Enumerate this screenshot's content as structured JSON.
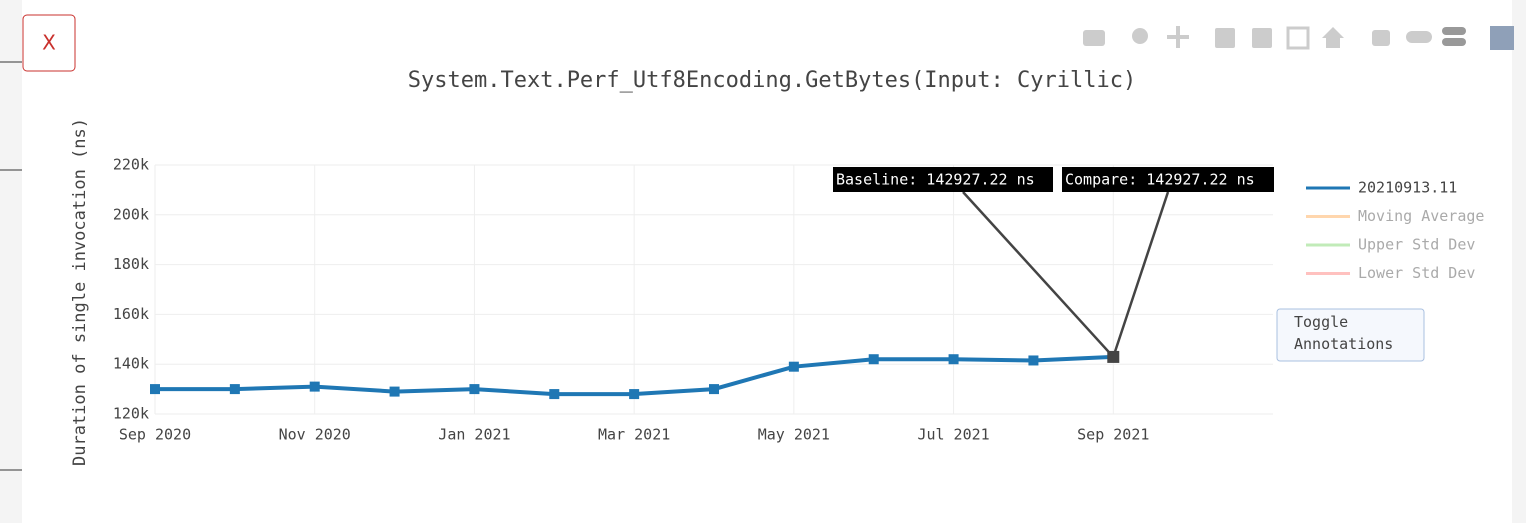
{
  "close_button": "X",
  "toggle_button": "Toggle Annotations",
  "chart_data": {
    "type": "line",
    "title": "System.Text.Perf_Utf8Encoding.GetBytes(Input: Cyrillic)",
    "y_label": "Duration of single invocation (ns)",
    "x": [
      "2020-09",
      "2020-10",
      "2020-11",
      "2020-12",
      "2021-01",
      "2021-02",
      "2021-03",
      "2021-04",
      "2021-05",
      "2021-06",
      "2021-07",
      "2021-08",
      "2021-09"
    ],
    "series": [
      {
        "name": "20210913.11",
        "color": "#1f77b4",
        "values": [
          130000,
          130000,
          131000,
          129000,
          130000,
          128000,
          128000,
          130000,
          139000,
          142000,
          142000,
          141500,
          142927.22
        ]
      },
      {
        "name": "Moving Average",
        "color": "#ffbb78",
        "hidden": true
      },
      {
        "name": "Upper Std Dev",
        "color": "#98df8a",
        "hidden": true
      },
      {
        "name": "Lower Std Dev",
        "color": "#ff9896",
        "hidden": true
      }
    ],
    "annotations": [
      {
        "text": "Baseline: 142927.22 ns"
      },
      {
        "text": "Compare: 142927.22 ns"
      }
    ],
    "xlim": [
      "2020-09",
      "2021-11"
    ],
    "xticks": [
      {
        "value": "2020-09",
        "label": "Sep 2020"
      },
      {
        "value": "2020-11",
        "label": "Nov 2020"
      },
      {
        "value": "2021-01",
        "label": "Jan 2021"
      },
      {
        "value": "2021-03",
        "label": "Mar 2021"
      },
      {
        "value": "2021-05",
        "label": "May 2021"
      },
      {
        "value": "2021-07",
        "label": "Jul 2021"
      },
      {
        "value": "2021-09",
        "label": "Sep 2021"
      }
    ],
    "ylim": [
      120000,
      220000
    ],
    "yticks": [
      {
        "value": 120000,
        "label": "120k"
      },
      {
        "value": 140000,
        "label": "140k"
      },
      {
        "value": 160000,
        "label": "160k"
      },
      {
        "value": 180000,
        "label": "180k"
      },
      {
        "value": 200000,
        "label": "200k"
      },
      {
        "value": 220000,
        "label": "220k"
      }
    ],
    "grid": true
  }
}
